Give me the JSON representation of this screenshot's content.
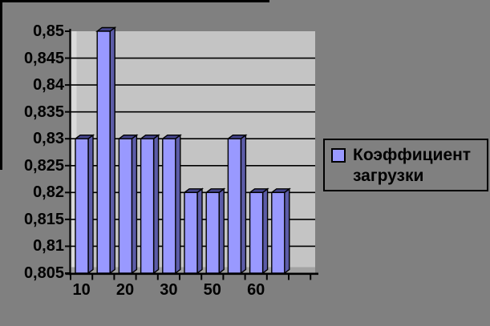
{
  "chart_data": {
    "type": "bar",
    "style": "3d-clustered-column",
    "title": "",
    "series": [
      {
        "name": "Коэффициент загрузки",
        "values": [
          0.83,
          0.85,
          0.83,
          0.83,
          0.83,
          0.82,
          0.82,
          0.83,
          0.82,
          0.82
        ]
      }
    ],
    "x_tick_labels": [
      {
        "text": "10",
        "under_bar": 0
      },
      {
        "text": "20",
        "under_bar": 2
      },
      {
        "text": "30",
        "under_bar": 4
      },
      {
        "text": "50",
        "under_bar": 6
      },
      {
        "text": "60",
        "under_bar": 8
      }
    ],
    "y_tick_labels": [
      "0,85",
      "0,845",
      "0,84",
      "0,835",
      "0,83",
      "0,825",
      "0,82",
      "0,815",
      "0,81",
      "0,805"
    ],
    "ylim": [
      0.805,
      0.85
    ],
    "y_step": 0.005,
    "decimal_separator": ",",
    "grid": "horizontal",
    "empty_trailing_slots": 1,
    "legend": {
      "label": "Коэффициент загрузки",
      "position": "right"
    },
    "colors": {
      "outer_background": "#808080",
      "plot_background": "#C4C4C4",
      "wall_side": "#DADADA",
      "floor": "#A3A3A3",
      "bar_front": "#9999FF",
      "bar_side": "#5C5CA8",
      "bar_top": "#44448C",
      "gridline": "#000000",
      "axis": "#000000",
      "text": "#000000",
      "legend_background": "#808080",
      "legend_border": "#000000"
    }
  }
}
